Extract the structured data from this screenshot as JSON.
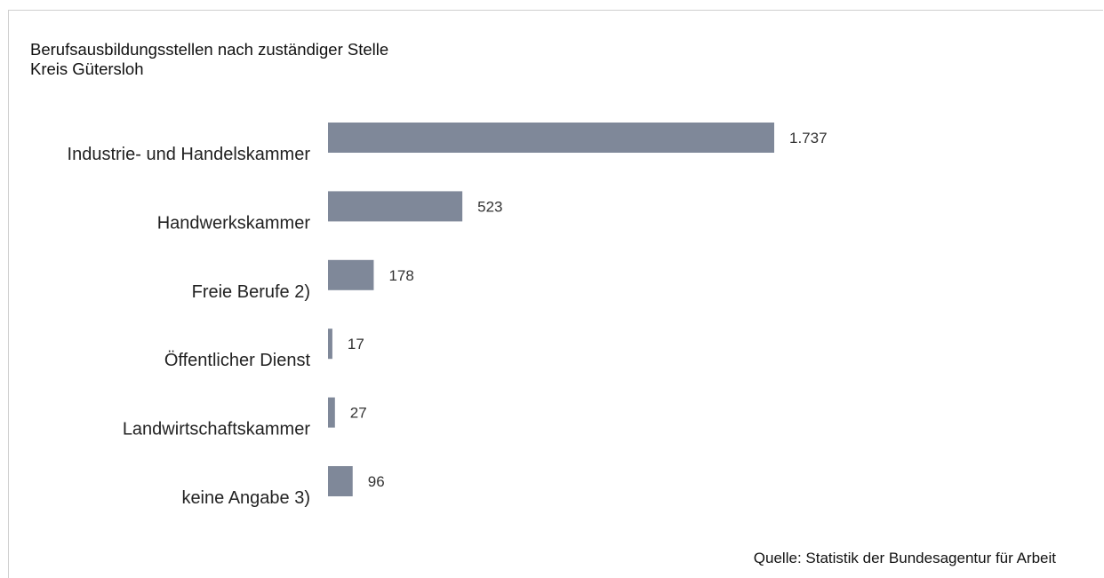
{
  "chart_data": {
    "type": "bar",
    "orientation": "horizontal",
    "title": "Berufsausbildungsstellen nach zuständiger Stelle",
    "subtitle": "Kreis Gütersloh",
    "categories": [
      "Industrie- und Handelskammer",
      "Handwerkskammer",
      "Freie Berufe 2)",
      "Öffentlicher Dienst",
      "Landwirtschaftskammer",
      "keine Angabe 3)"
    ],
    "values": [
      1737,
      523,
      178,
      17,
      27,
      96
    ],
    "value_labels": [
      "1.737",
      "523",
      "178",
      "17",
      "27",
      "96"
    ],
    "xlim": [
      0,
      1737
    ],
    "grid": false,
    "legend": "none",
    "bar_color": "#7f8899",
    "source": "Quelle: Statistik der Bundesagentur für Arbeit"
  }
}
